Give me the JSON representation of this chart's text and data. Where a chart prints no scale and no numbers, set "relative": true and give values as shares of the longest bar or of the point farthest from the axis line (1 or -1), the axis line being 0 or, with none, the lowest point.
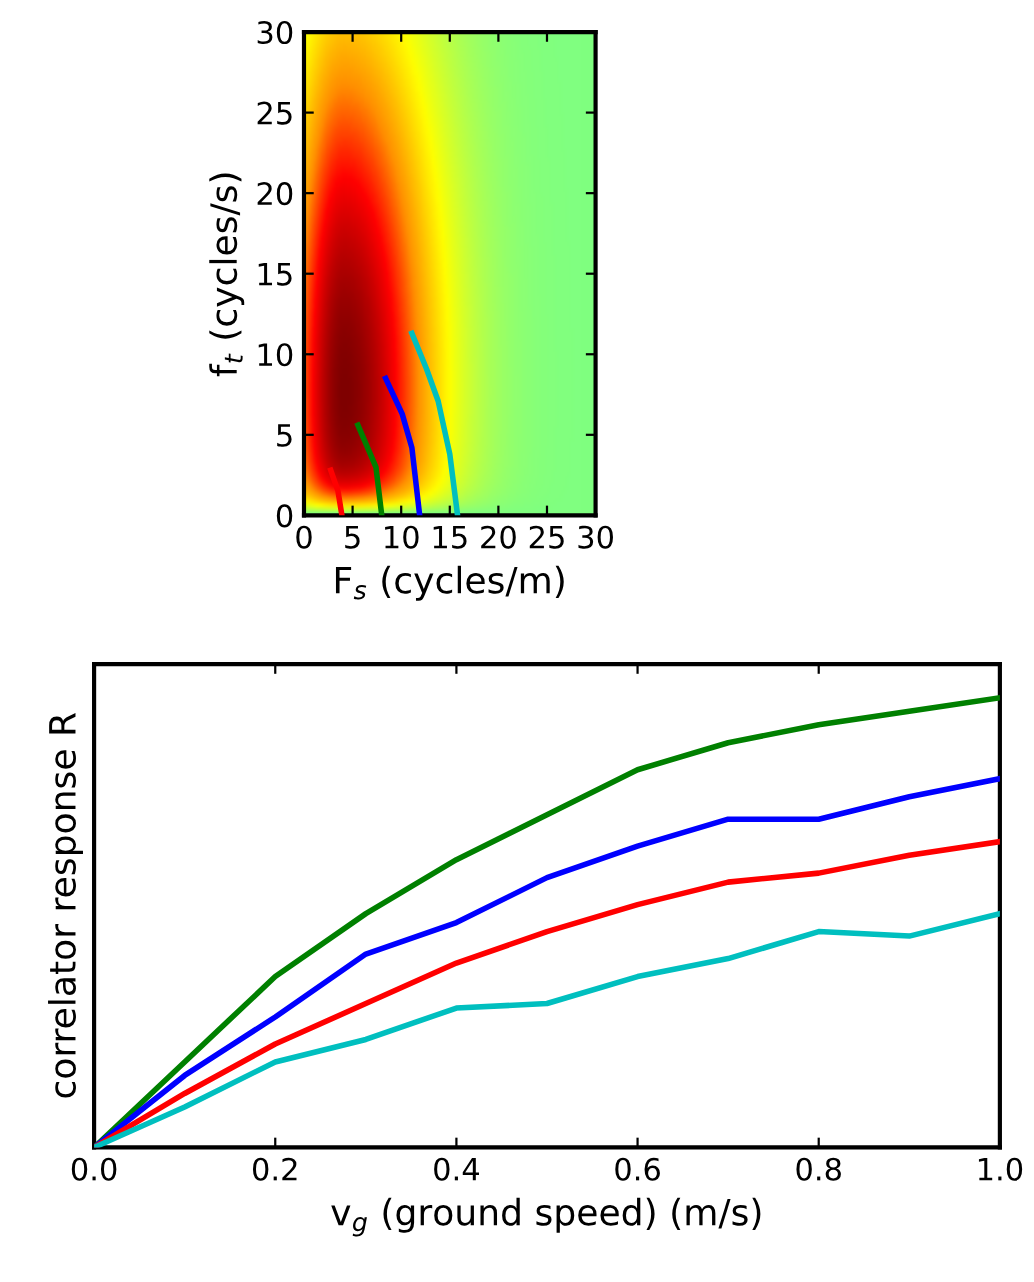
{
  "chart_data": [
    {
      "type": "line",
      "marker": "none",
      "xlabel": "F$_{s}$ (cycles/m)",
      "ylabel": "f$_{t}$ (cycles/s)",
      "xlim": [
        0,
        30
      ],
      "ylim": [
        0,
        30
      ],
      "xticks": [
        0,
        5,
        10,
        15,
        20,
        25,
        30
      ],
      "yticks": [
        0,
        5,
        10,
        15,
        20,
        25,
        30
      ],
      "grid": false,
      "series": [
        {
          "color": "#ff0000",
          "x": [
            3.9,
            3.5,
            2.75
          ],
          "values": [
            0,
            1.5,
            2.8
          ]
        },
        {
          "color": "#008000",
          "x": [
            8.0,
            7.4,
            5.55
          ],
          "values": [
            0,
            3.0,
            5.6
          ]
        },
        {
          "color": "#0000ff",
          "x": [
            11.9,
            11.1,
            10.1,
            8.4
          ],
          "values": [
            0,
            4.2,
            6.3,
            8.5
          ]
        },
        {
          "color": "#00bfbf",
          "x": [
            15.8,
            15.0,
            13.8,
            12.6,
            11.1
          ],
          "values": [
            0,
            3.8,
            7.1,
            9.1,
            11.3
          ]
        }
      ]
    },
    {
      "type": "line",
      "marker": "none",
      "relative": true,
      "xlabel": "v$_{g}$ (ground speed) (m/s)",
      "ylabel": "correlator response R",
      "xlim": [
        0,
        1
      ],
      "xticks": [
        {
          "value": 0,
          "label": "0.0"
        },
        {
          "value": 0.2,
          "label": "0.2"
        },
        {
          "value": 0.4,
          "label": "0.4"
        },
        {
          "value": 0.6,
          "label": "0.6"
        },
        {
          "value": 0.8,
          "label": "0.8"
        },
        {
          "value": 1,
          "label": "1.0"
        }
      ],
      "tick_labels": "x",
      "grid": false,
      "x": [
        0,
        0.1,
        0.2,
        0.3,
        0.4,
        0.5,
        0.6,
        0.7,
        0.8,
        0.9,
        1.0
      ],
      "series": [
        {
          "color": "#008000",
          "values": [
            0,
            0.19,
            0.38,
            0.52,
            0.64,
            0.74,
            0.84,
            0.9,
            0.94,
            0.97,
            1
          ]
        },
        {
          "color": "#0000ff",
          "values": [
            0,
            0.16,
            0.29,
            0.43,
            0.5,
            0.6,
            0.67,
            0.73,
            0.73,
            0.78,
            0.82
          ]
        },
        {
          "color": "#ff0000",
          "values": [
            0,
            0.12,
            0.23,
            0.32,
            0.41,
            0.48,
            0.54,
            0.59,
            0.61,
            0.65,
            0.68
          ]
        },
        {
          "color": "#00bfbf",
          "values": [
            0,
            0.09,
            0.19,
            0.24,
            0.31,
            0.32,
            0.38,
            0.42,
            0.48,
            0.47,
            0.52
          ]
        }
      ]
    }
  ]
}
